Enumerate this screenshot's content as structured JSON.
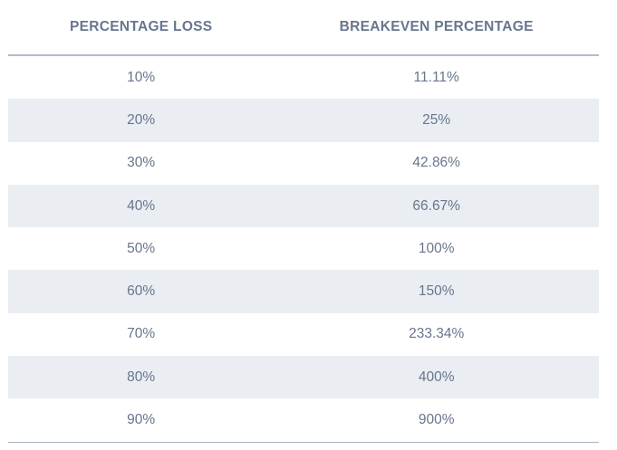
{
  "table": {
    "headers": [
      {
        "label": "PERCENTAGE LOSS"
      },
      {
        "label": "BREAKEVEN PERCENTAGE"
      }
    ],
    "rows": [
      {
        "loss": "10%",
        "breakeven": "11.11%"
      },
      {
        "loss": "20%",
        "breakeven": "25%"
      },
      {
        "loss": "30%",
        "breakeven": "42.86%"
      },
      {
        "loss": "40%",
        "breakeven": "66.67%"
      },
      {
        "loss": "50%",
        "breakeven": "100%"
      },
      {
        "loss": "60%",
        "breakeven": "150%"
      },
      {
        "loss": "70%",
        "breakeven": "233.34%"
      },
      {
        "loss": "80%",
        "breakeven": "400%"
      },
      {
        "loss": "90%",
        "breakeven": "900%"
      }
    ],
    "colors": {
      "header_text": "#4e5d78",
      "cell_text": "#68758d",
      "stripe_background": "#eaeef3",
      "header_rule": "#b3bbc8",
      "bottom_rule": "#a9b3c2"
    }
  },
  "chart_data": {
    "type": "table",
    "columns": [
      "PERCENTAGE LOSS",
      "BREAKEVEN PERCENTAGE"
    ],
    "rows": [
      [
        "10%",
        "11.11%"
      ],
      [
        "20%",
        "25%"
      ],
      [
        "30%",
        "42.86%"
      ],
      [
        "40%",
        "66.67%"
      ],
      [
        "50%",
        "100%"
      ],
      [
        "60%",
        "150%"
      ],
      [
        "70%",
        "233.34%"
      ],
      [
        "80%",
        "400%"
      ],
      [
        "90%",
        "900%"
      ]
    ],
    "layout": {
      "striped_rows": "even rows shaded",
      "header_rule": true,
      "bottom_rule": true,
      "cell_alignment": "center"
    }
  }
}
